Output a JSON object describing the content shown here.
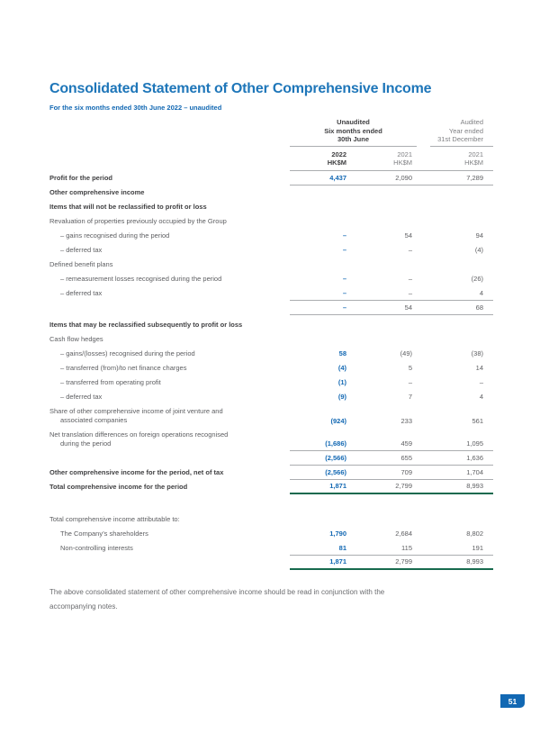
{
  "title": "Consolidated Statement of Other Comprehensive Income",
  "subtitle": "For the six months ended 30th June 2022 – unaudited",
  "footer": {
    "line1": "The above consolidated statement of other comprehensive income should be read in conjunction with the",
    "line2": "accompanying notes."
  },
  "page_number": "51",
  "colors": {
    "title_blue": "#1e76b9",
    "accent_blue": "#1268b3",
    "bold_text": "#404042",
    "body_text": "#5d5e61",
    "muted_header_text": "#808184",
    "rule_gray": "#abadb0",
    "total_rule_green": "#176a4e",
    "badge_blue": "#1268b3"
  },
  "table": {
    "groups": [
      {
        "lines": [
          "Unaudited",
          "Six months ended",
          "30th June"
        ],
        "emphasis": "bold"
      },
      {
        "lines": [
          "Audited",
          "Year ended",
          "31st December"
        ],
        "emphasis": "regular"
      }
    ],
    "columns": [
      {
        "year": "2022",
        "unit": "HK$M",
        "emphasis": "bold"
      },
      {
        "year": "2021",
        "unit": "HK$M",
        "emphasis": "regular"
      },
      {
        "year": "2021",
        "unit": "HK$M",
        "emphasis": "regular"
      }
    ],
    "rows": [
      {
        "label": "Profit for the period",
        "bold": true,
        "values": [
          "4,437",
          "2,090",
          "7,289"
        ],
        "rule_below": "thin"
      },
      {
        "label": "Other comprehensive income",
        "bold": true,
        "values": null
      },
      {
        "label": "Items that will not be reclassified to profit or loss",
        "bold": true,
        "values": null
      },
      {
        "label": "Revaluation of properties previously occupied by the Group",
        "values": null
      },
      {
        "label": "– gains recognised during the period",
        "indent": true,
        "values": [
          "–",
          "54",
          "94"
        ]
      },
      {
        "label": "– deferred tax",
        "indent": true,
        "values": [
          "–",
          "–",
          "(4)"
        ]
      },
      {
        "label": "Defined benefit plans",
        "values": null
      },
      {
        "label": "– remeasurement losses recognised during the period",
        "indent": true,
        "values": [
          "–",
          "–",
          "(26)"
        ]
      },
      {
        "label": "– deferred tax",
        "indent": true,
        "values": [
          "–",
          "–",
          "4"
        ],
        "rule_below": "thin"
      },
      {
        "label": "",
        "values": [
          "–",
          "54",
          "68"
        ],
        "rule_below": "thin"
      },
      {
        "label": "Items that may be reclassified subsequently to profit or loss",
        "bold": true,
        "values": null,
        "gap_before": 3
      },
      {
        "label": "Cash flow hedges",
        "values": null
      },
      {
        "label": "– gains/(losses) recognised during the period",
        "indent": true,
        "values": [
          "58",
          "(49)",
          "(38)"
        ]
      },
      {
        "label": "– transferred (from)/to net finance charges",
        "indent": true,
        "values": [
          "(4)",
          "5",
          "14"
        ]
      },
      {
        "label": "– transferred from operating profit",
        "indent": true,
        "values": [
          "(1)",
          "–",
          "–"
        ]
      },
      {
        "label": "– deferred tax",
        "indent": true,
        "values": [
          "(9)",
          "7",
          "4"
        ]
      },
      {
        "label": "Share of other comprehensive income of joint venture and",
        "label2": "associated companies",
        "values": [
          "(924)",
          "233",
          "561"
        ]
      },
      {
        "label": "Net translation differences on foreign operations recognised",
        "label2": "during the period",
        "values": [
          "(1,686)",
          "459",
          "1,095"
        ],
        "rule_below": "thin"
      },
      {
        "label": "",
        "values": [
          "(2,566)",
          "655",
          "1,636"
        ],
        "rule_below": "thin"
      },
      {
        "label": "Other comprehensive income for the period, net of tax",
        "bold": true,
        "values": [
          "(2,566)",
          "709",
          "1,704"
        ],
        "rule_below": "thin"
      },
      {
        "label": "Total comprehensive income for the period",
        "bold": true,
        "values": [
          "1,871",
          "2,799",
          "8,993"
        ],
        "rule_below": "green"
      },
      {
        "label": "Total comprehensive income attributable to:",
        "values": null,
        "gap_before": 20
      },
      {
        "label": "The Company’s shareholders",
        "indent": true,
        "values": [
          "1,790",
          "2,684",
          "8,802"
        ]
      },
      {
        "label": "Non-controlling interests",
        "indent": true,
        "values": [
          "81",
          "115",
          "191"
        ],
        "rule_below": "thin"
      },
      {
        "label": "",
        "values": [
          "1,871",
          "2,799",
          "8,993"
        ],
        "rule_below": "green"
      }
    ]
  }
}
